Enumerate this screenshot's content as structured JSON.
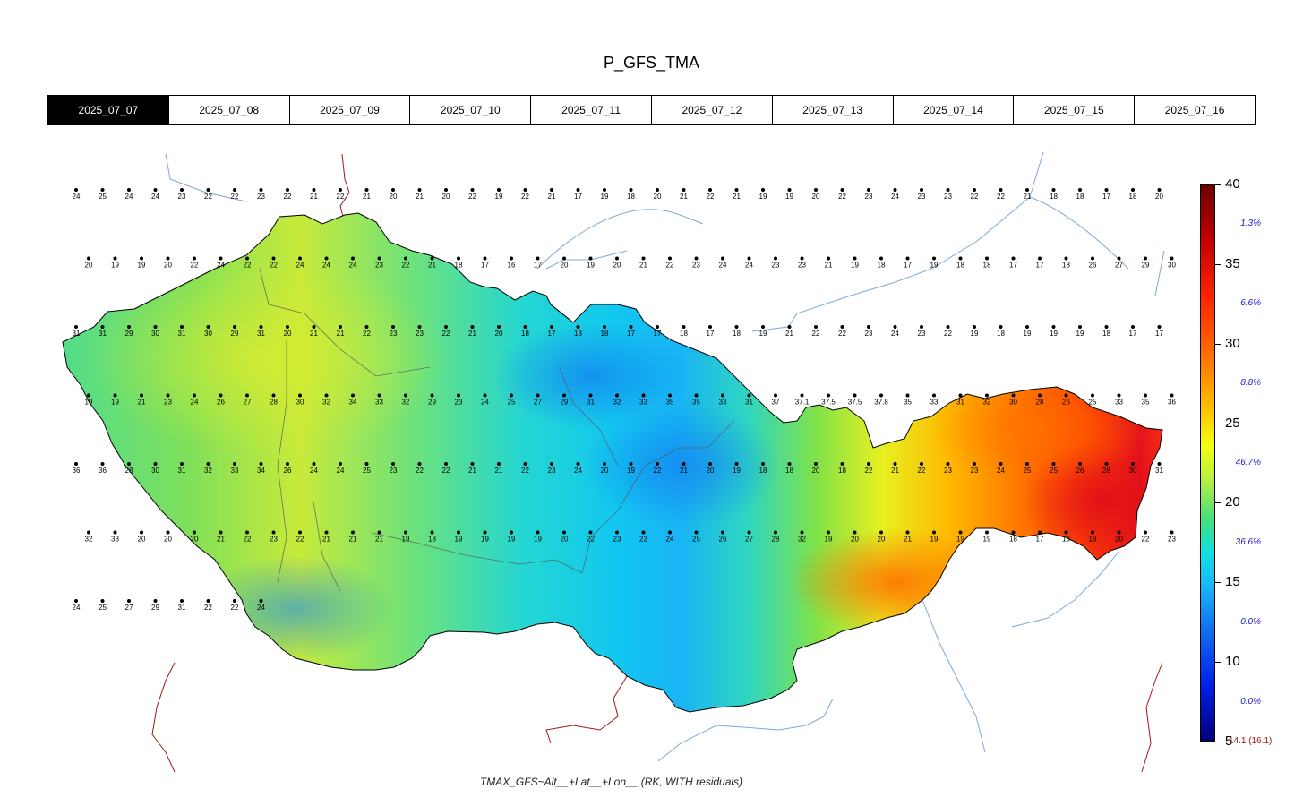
{
  "title": "P_GFS_TMA",
  "dates": [
    "2025_07_07",
    "2025_07_08",
    "2025_07_09",
    "2025_07_10",
    "2025_07_11",
    "2025_07_12",
    "2025_07_13",
    "2025_07_14",
    "2025_07_15",
    "2025_07_16"
  ],
  "selected_date": "2025_07_07",
  "legend": {
    "ticks": [
      "40",
      "35",
      "30",
      "25",
      "20",
      "15",
      "10",
      "5"
    ],
    "tick_values": [
      40,
      35,
      30,
      25,
      20,
      15,
      10,
      5
    ],
    "range": [
      5,
      40
    ],
    "percentages": [
      "1.3%",
      "6.6%",
      "8.8%",
      "46.7%",
      "36.6%",
      "0.0%",
      "0.0%"
    ],
    "minmax_label": "14.1 (16.1)"
  },
  "footer": "TMAX_GFS~Alt__+Lat__+Lon__ (RK, WITH residuals)",
  "colors": {
    "country_border": "#000000",
    "rivers": "#7ea7d8",
    "foreign_border": "#a01818",
    "cold": "#19b4f5",
    "mild": "#5fe06a",
    "warm": "#f5ef1e",
    "hot": "#ff6a00",
    "very_hot": "#e3121a",
    "percent_text": "#1a1acc"
  },
  "stations": [
    {
      "v": "24"
    },
    {
      "v": "25"
    },
    {
      "v": "24"
    },
    {
      "v": "24"
    },
    {
      "v": "23"
    },
    {
      "v": "22"
    },
    {
      "v": "22"
    },
    {
      "v": "23"
    },
    {
      "v": "22"
    },
    {
      "v": "21"
    },
    {
      "v": "22"
    },
    {
      "v": "21"
    },
    {
      "v": "20"
    },
    {
      "v": "21"
    },
    {
      "v": "20"
    },
    {
      "v": "22"
    },
    {
      "v": "19"
    },
    {
      "v": "22"
    },
    {
      "v": "21"
    },
    {
      "v": "17"
    },
    {
      "v": "19"
    },
    {
      "v": "18"
    },
    {
      "v": "20"
    },
    {
      "v": "21"
    },
    {
      "v": "22"
    },
    {
      "v": "21"
    },
    {
      "v": "19"
    },
    {
      "v": "19"
    },
    {
      "v": "20"
    },
    {
      "v": "22"
    },
    {
      "v": "23"
    },
    {
      "v": "24"
    },
    {
      "v": "23"
    },
    {
      "v": "23"
    },
    {
      "v": "22"
    },
    {
      "v": "22"
    },
    {
      "v": "21"
    },
    {
      "v": "18"
    },
    {
      "v": "18"
    },
    {
      "v": "17"
    },
    {
      "v": "18"
    },
    {
      "v": "20"
    },
    {
      "v": "20"
    },
    {
      "v": "19"
    },
    {
      "v": "19"
    },
    {
      "v": "20"
    },
    {
      "v": "22"
    },
    {
      "v": "24"
    },
    {
      "v": "22"
    },
    {
      "v": "22"
    },
    {
      "v": "24"
    },
    {
      "v": "24"
    },
    {
      "v": "24"
    },
    {
      "v": "23"
    },
    {
      "v": "22"
    },
    {
      "v": "21"
    },
    {
      "v": "18"
    },
    {
      "v": "17"
    },
    {
      "v": "16"
    },
    {
      "v": "17"
    },
    {
      "v": "20"
    },
    {
      "v": "19"
    },
    {
      "v": "20"
    },
    {
      "v": "21"
    },
    {
      "v": "22"
    },
    {
      "v": "23"
    },
    {
      "v": "24"
    },
    {
      "v": "24"
    },
    {
      "v": "23"
    },
    {
      "v": "23"
    },
    {
      "v": "21"
    },
    {
      "v": "19"
    },
    {
      "v": "18"
    },
    {
      "v": "17"
    },
    {
      "v": "19"
    },
    {
      "v": "18"
    },
    {
      "v": "18"
    },
    {
      "v": "17"
    },
    {
      "v": "17"
    },
    {
      "v": "18"
    },
    {
      "v": "26"
    },
    {
      "v": "27"
    },
    {
      "v": "29"
    },
    {
      "v": "30"
    },
    {
      "v": "31"
    },
    {
      "v": "31"
    },
    {
      "v": "29"
    },
    {
      "v": "30"
    },
    {
      "v": "31"
    },
    {
      "v": "30"
    },
    {
      "v": "29"
    },
    {
      "v": "31"
    },
    {
      "v": "20"
    },
    {
      "v": "21"
    },
    {
      "v": "21"
    },
    {
      "v": "22"
    },
    {
      "v": "23"
    },
    {
      "v": "23"
    },
    {
      "v": "22"
    },
    {
      "v": "21"
    },
    {
      "v": "20"
    },
    {
      "v": "18"
    },
    {
      "v": "17"
    },
    {
      "v": "18"
    },
    {
      "v": "18"
    },
    {
      "v": "17"
    },
    {
      "v": "17"
    },
    {
      "v": "18"
    },
    {
      "v": "17"
    },
    {
      "v": "18"
    },
    {
      "v": "19"
    },
    {
      "v": "21"
    },
    {
      "v": "22"
    },
    {
      "v": "22"
    },
    {
      "v": "23"
    },
    {
      "v": "24"
    },
    {
      "v": "23"
    },
    {
      "v": "22"
    },
    {
      "v": "19"
    },
    {
      "v": "18"
    },
    {
      "v": "19"
    },
    {
      "v": "19"
    },
    {
      "v": "19"
    },
    {
      "v": "18"
    },
    {
      "v": "17"
    },
    {
      "v": "17"
    },
    {
      "v": "19"
    },
    {
      "v": "19"
    },
    {
      "v": "21"
    },
    {
      "v": "23"
    },
    {
      "v": "24"
    },
    {
      "v": "26"
    },
    {
      "v": "27"
    },
    {
      "v": "28"
    },
    {
      "v": "30"
    },
    {
      "v": "32"
    },
    {
      "v": "34"
    },
    {
      "v": "33"
    },
    {
      "v": "32"
    },
    {
      "v": "29"
    },
    {
      "v": "23"
    },
    {
      "v": "24"
    },
    {
      "v": "25"
    },
    {
      "v": "27"
    },
    {
      "v": "29"
    },
    {
      "v": "31"
    },
    {
      "v": "32"
    },
    {
      "v": "33"
    },
    {
      "v": "35"
    },
    {
      "v": "35"
    },
    {
      "v": "33"
    },
    {
      "v": "31"
    },
    {
      "v": "37"
    },
    {
      "v": "37.1"
    },
    {
      "v": "37.5"
    },
    {
      "v": "37.5"
    },
    {
      "v": "37.8"
    },
    {
      "v": "35"
    },
    {
      "v": "33"
    },
    {
      "v": "31"
    },
    {
      "v": "32"
    },
    {
      "v": "30"
    },
    {
      "v": "28"
    },
    {
      "v": "26"
    },
    {
      "v": "25"
    },
    {
      "v": "33"
    },
    {
      "v": "35"
    },
    {
      "v": "36"
    },
    {
      "v": "36"
    },
    {
      "v": "36"
    },
    {
      "v": "28"
    },
    {
      "v": "30"
    },
    {
      "v": "31"
    },
    {
      "v": "32"
    },
    {
      "v": "33"
    },
    {
      "v": "34"
    },
    {
      "v": "26"
    },
    {
      "v": "24"
    },
    {
      "v": "24"
    },
    {
      "v": "25"
    },
    {
      "v": "23"
    },
    {
      "v": "22"
    },
    {
      "v": "22"
    },
    {
      "v": "21"
    },
    {
      "v": "21"
    },
    {
      "v": "22"
    },
    {
      "v": "23"
    },
    {
      "v": "24"
    },
    {
      "v": "20"
    },
    {
      "v": "19"
    },
    {
      "v": "22"
    },
    {
      "v": "21"
    },
    {
      "v": "20"
    },
    {
      "v": "19"
    },
    {
      "v": "18"
    },
    {
      "v": "18"
    },
    {
      "v": "20"
    },
    {
      "v": "18"
    },
    {
      "v": "22"
    },
    {
      "v": "21"
    },
    {
      "v": "22"
    },
    {
      "v": "23"
    },
    {
      "v": "23"
    },
    {
      "v": "24"
    },
    {
      "v": "25"
    },
    {
      "v": "25"
    },
    {
      "v": "26"
    },
    {
      "v": "28"
    },
    {
      "v": "30"
    },
    {
      "v": "31"
    },
    {
      "v": "32"
    },
    {
      "v": "33"
    },
    {
      "v": "20"
    },
    {
      "v": "20"
    },
    {
      "v": "20"
    },
    {
      "v": "21"
    },
    {
      "v": "22"
    },
    {
      "v": "23"
    },
    {
      "v": "22"
    },
    {
      "v": "21"
    },
    {
      "v": "21"
    },
    {
      "v": "21"
    },
    {
      "v": "19"
    },
    {
      "v": "18"
    },
    {
      "v": "19"
    },
    {
      "v": "19"
    },
    {
      "v": "19"
    },
    {
      "v": "19"
    },
    {
      "v": "20"
    },
    {
      "v": "22"
    },
    {
      "v": "23"
    },
    {
      "v": "23"
    },
    {
      "v": "24"
    },
    {
      "v": "25"
    },
    {
      "v": "26"
    },
    {
      "v": "27"
    },
    {
      "v": "28"
    },
    {
      "v": "32"
    },
    {
      "v": "19"
    },
    {
      "v": "20"
    },
    {
      "v": "20"
    },
    {
      "v": "21"
    },
    {
      "v": "19"
    },
    {
      "v": "19"
    },
    {
      "v": "19"
    },
    {
      "v": "18"
    },
    {
      "v": "17"
    },
    {
      "v": "16"
    },
    {
      "v": "18"
    },
    {
      "v": "20"
    },
    {
      "v": "22"
    },
    {
      "v": "23"
    },
    {
      "v": "24"
    },
    {
      "v": "25"
    },
    {
      "v": "27"
    },
    {
      "v": "29"
    },
    {
      "v": "31"
    },
    {
      "v": "22"
    },
    {
      "v": "22"
    },
    {
      "v": "24"
    }
  ]
}
